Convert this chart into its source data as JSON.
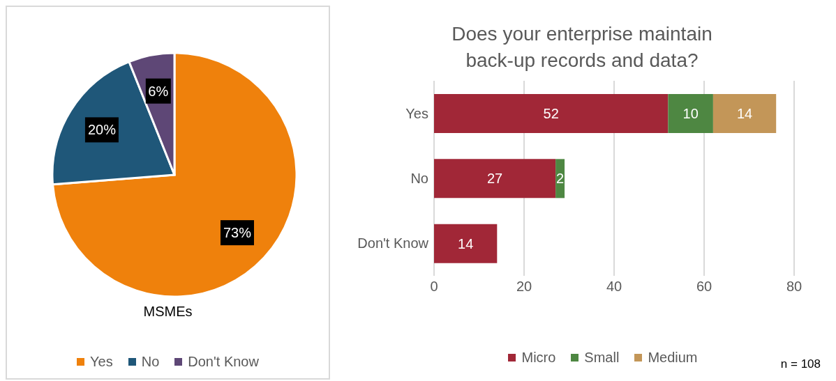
{
  "chart_data": [
    {
      "type": "pie",
      "xlabel": "MSMEs",
      "categories": [
        "Yes",
        "No",
        "Don't Know"
      ],
      "values": [
        73,
        20,
        6
      ],
      "colors": [
        "#ef810c",
        "#1f5779",
        "#5e4776"
      ],
      "value_labels": [
        "73%",
        "20%",
        "6%"
      ],
      "legend": "bottom"
    },
    {
      "type": "bar",
      "orientation": "horizontal",
      "stacked": true,
      "title": "Does your enterprise maintain back-up records and data?",
      "categories": [
        "Yes",
        "No",
        "Don't Know"
      ],
      "series": [
        {
          "name": "Micro",
          "color": "#a12737",
          "values": [
            52,
            27,
            14
          ]
        },
        {
          "name": "Small",
          "color": "#4e8742",
          "values": [
            10,
            2,
            null
          ]
        },
        {
          "name": "Medium",
          "color": "#c39658",
          "values": [
            14,
            null,
            null
          ]
        }
      ],
      "xlim": [
        0,
        80
      ],
      "xticks": [
        0,
        20,
        40,
        60,
        80
      ],
      "grid": "x",
      "data_labels": true,
      "legend": "bottom",
      "annotations": [
        "n = 108"
      ]
    }
  ]
}
